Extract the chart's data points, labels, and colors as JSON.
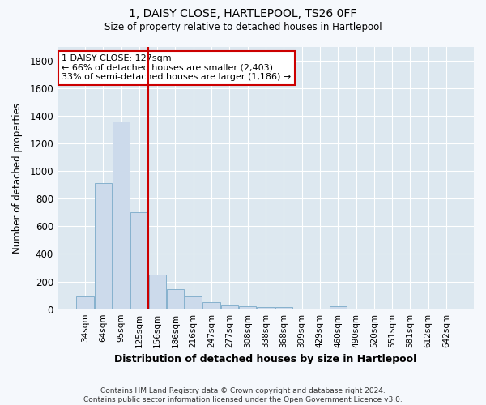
{
  "title": "1, DAISY CLOSE, HARTLEPOOL, TS26 0FF",
  "subtitle": "Size of property relative to detached houses in Hartlepool",
  "xlabel": "Distribution of detached houses by size in Hartlepool",
  "ylabel": "Number of detached properties",
  "footer_line1": "Contains HM Land Registry data © Crown copyright and database right 2024.",
  "footer_line2": "Contains public sector information licensed under the Open Government Licence v3.0.",
  "bin_labels": [
    "34sqm",
    "64sqm",
    "95sqm",
    "125sqm",
    "156sqm",
    "186sqm",
    "216sqm",
    "247sqm",
    "277sqm",
    "308sqm",
    "338sqm",
    "368sqm",
    "399sqm",
    "429sqm",
    "460sqm",
    "490sqm",
    "520sqm",
    "551sqm",
    "581sqm",
    "612sqm",
    "642sqm"
  ],
  "bar_values": [
    93,
    910,
    1355,
    703,
    248,
    143,
    93,
    53,
    28,
    20,
    15,
    15,
    0,
    0,
    20,
    0,
    0,
    0,
    0,
    0,
    0
  ],
  "bar_color": "#ccdaeb",
  "bar_edge_color": "#7aaac8",
  "vline_color": "#cc0000",
  "vline_x": 3.5,
  "ylim": [
    0,
    1900
  ],
  "yticks": [
    0,
    200,
    400,
    600,
    800,
    1000,
    1200,
    1400,
    1600,
    1800
  ],
  "annotation_title": "1 DAISY CLOSE: 127sqm",
  "annotation_line1": "← 66% of detached houses are smaller (2,403)",
  "annotation_line2": "33% of semi-detached houses are larger (1,186) →",
  "annotation_box_color": "#ffffff",
  "annotation_box_edge": "#cc0000",
  "figure_bg_color": "#f5f8fc",
  "plot_bg_color": "#dde8f0"
}
